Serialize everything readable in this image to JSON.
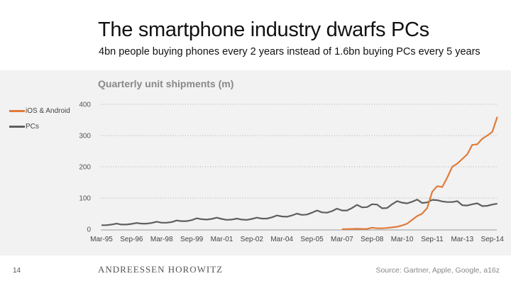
{
  "slide": {
    "title": "The smartphone industry dwarfs PCs",
    "subtitle": "4bn people buying phones every 2 years instead of 1.6bn buying PCs every 5 years",
    "page_number": "14",
    "logo_text": "ANDREESSEN HOROWITZ",
    "source": "Source: Gartner, Apple, Google, a16z"
  },
  "chart_data": {
    "type": "line",
    "title": "Quarterly unit shipments (m)",
    "xlabel": "",
    "ylabel": "",
    "ylim": [
      0,
      400
    ],
    "yticks": [
      "0",
      "100",
      "200",
      "300",
      "400"
    ],
    "xtick_labels": [
      "Mar-95",
      "Sep-96",
      "Mar-98",
      "Sep-99",
      "Mar-01",
      "Sep-02",
      "Mar-04",
      "Sep-05",
      "Mar-07",
      "Sep-08",
      "Mar-10",
      "Sep-11",
      "Mar-13",
      "Sep-14"
    ],
    "grid": "horizontal dotted",
    "legend_placement": "left",
    "x": [
      "Mar-95",
      "Jun-95",
      "Sep-95",
      "Dec-95",
      "Mar-96",
      "Jun-96",
      "Sep-96",
      "Dec-96",
      "Mar-97",
      "Jun-97",
      "Sep-97",
      "Dec-97",
      "Mar-98",
      "Jun-98",
      "Sep-98",
      "Dec-98",
      "Mar-99",
      "Jun-99",
      "Sep-99",
      "Dec-99",
      "Mar-00",
      "Jun-00",
      "Sep-00",
      "Dec-00",
      "Mar-01",
      "Jun-01",
      "Sep-01",
      "Dec-01",
      "Mar-02",
      "Jun-02",
      "Sep-02",
      "Dec-02",
      "Mar-03",
      "Jun-03",
      "Sep-03",
      "Dec-03",
      "Mar-04",
      "Jun-04",
      "Sep-04",
      "Dec-04",
      "Mar-05",
      "Jun-05",
      "Sep-05",
      "Dec-05",
      "Mar-06",
      "Jun-06",
      "Sep-06",
      "Dec-06",
      "Mar-07",
      "Jun-07",
      "Sep-07",
      "Dec-07",
      "Mar-08",
      "Jun-08",
      "Sep-08",
      "Dec-08",
      "Mar-09",
      "Jun-09",
      "Sep-09",
      "Dec-09",
      "Mar-10",
      "Jun-10",
      "Sep-10",
      "Dec-10",
      "Mar-11",
      "Jun-11",
      "Sep-11",
      "Dec-11",
      "Mar-12",
      "Jun-12",
      "Sep-12",
      "Dec-12",
      "Mar-13",
      "Jun-13",
      "Sep-13",
      "Dec-13",
      "Mar-14",
      "Jun-14",
      "Sep-14",
      "Dec-14"
    ],
    "series": [
      {
        "name": "iOS & Android",
        "color": "#e07b39",
        "values": [
          null,
          null,
          null,
          null,
          null,
          null,
          null,
          null,
          null,
          null,
          null,
          null,
          null,
          null,
          null,
          null,
          null,
          null,
          null,
          null,
          null,
          null,
          null,
          null,
          null,
          null,
          null,
          null,
          null,
          null,
          null,
          null,
          null,
          null,
          null,
          null,
          null,
          null,
          null,
          null,
          null,
          null,
          null,
          null,
          null,
          null,
          null,
          null,
          0.3,
          0.5,
          1,
          1.5,
          1,
          1,
          5,
          3,
          3,
          4,
          6,
          8,
          12,
          18,
          30,
          42,
          50,
          68,
          120,
          138,
          135,
          165,
          200,
          210,
          225,
          240,
          270,
          272,
          290,
          300,
          312,
          360
        ]
      },
      {
        "name": "PCs",
        "color": "#5f5f5f",
        "values": [
          13,
          13,
          15,
          18,
          15,
          15,
          17,
          20,
          18,
          18,
          20,
          24,
          21,
          21,
          23,
          28,
          26,
          26,
          29,
          35,
          32,
          31,
          33,
          37,
          33,
          30,
          31,
          34,
          31,
          30,
          33,
          37,
          34,
          34,
          38,
          44,
          41,
          40,
          44,
          50,
          46,
          47,
          53,
          60,
          54,
          53,
          58,
          66,
          60,
          60,
          68,
          78,
          70,
          71,
          80,
          79,
          67,
          68,
          80,
          90,
          85,
          83,
          88,
          95,
          84,
          86,
          94,
          93,
          89,
          87,
          87,
          90,
          77,
          76,
          80,
          83,
          74,
          75,
          79,
          82
        ]
      }
    ]
  }
}
